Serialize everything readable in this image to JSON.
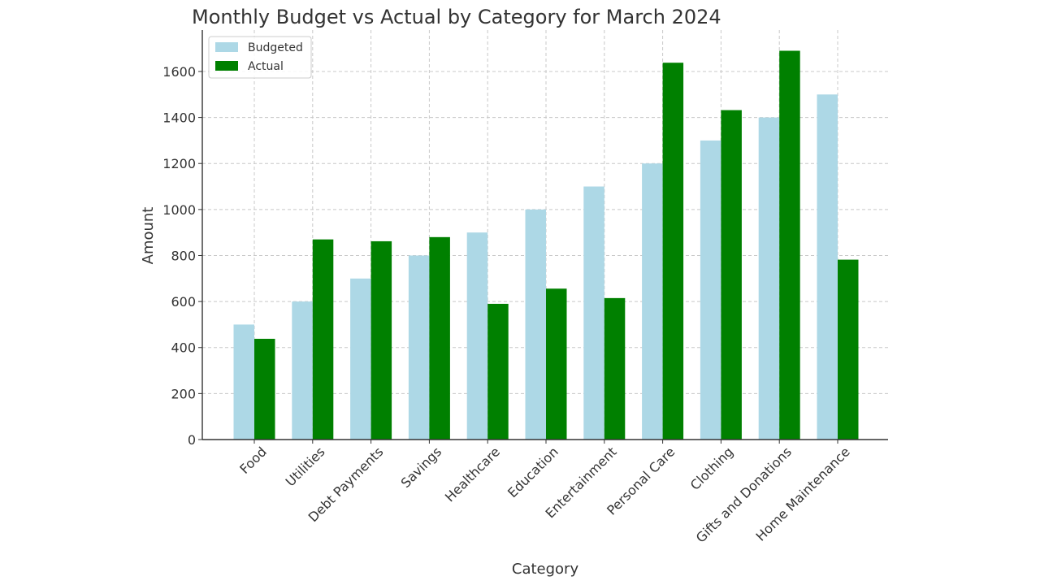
{
  "chart_data": {
    "type": "bar",
    "title": "Monthly Budget vs Actual by Category for March 2024",
    "xlabel": "Category",
    "ylabel": "Amount",
    "ylim": [
      0,
      1780
    ],
    "yticks": [
      0,
      200,
      400,
      600,
      800,
      1000,
      1200,
      1400,
      1600
    ],
    "grid": true,
    "legend_position": "top-left",
    "categories": [
      "Food",
      "Utilities",
      "Debt Payments",
      "Savings",
      "Healthcare",
      "Education",
      "Entertainment",
      "Personal Care",
      "Clothing",
      "Gifts and Donations",
      "Home Maintenance"
    ],
    "series": [
      {
        "name": "Budgeted",
        "color": "#add8e6",
        "values": [
          500,
          600,
          700,
          800,
          900,
          1000,
          1100,
          1200,
          1300,
          1400,
          1500
        ]
      },
      {
        "name": "Actual",
        "color": "#008000",
        "values": [
          438,
          870,
          862,
          880,
          590,
          656,
          615,
          1638,
          1432,
          1690,
          782
        ]
      }
    ]
  }
}
